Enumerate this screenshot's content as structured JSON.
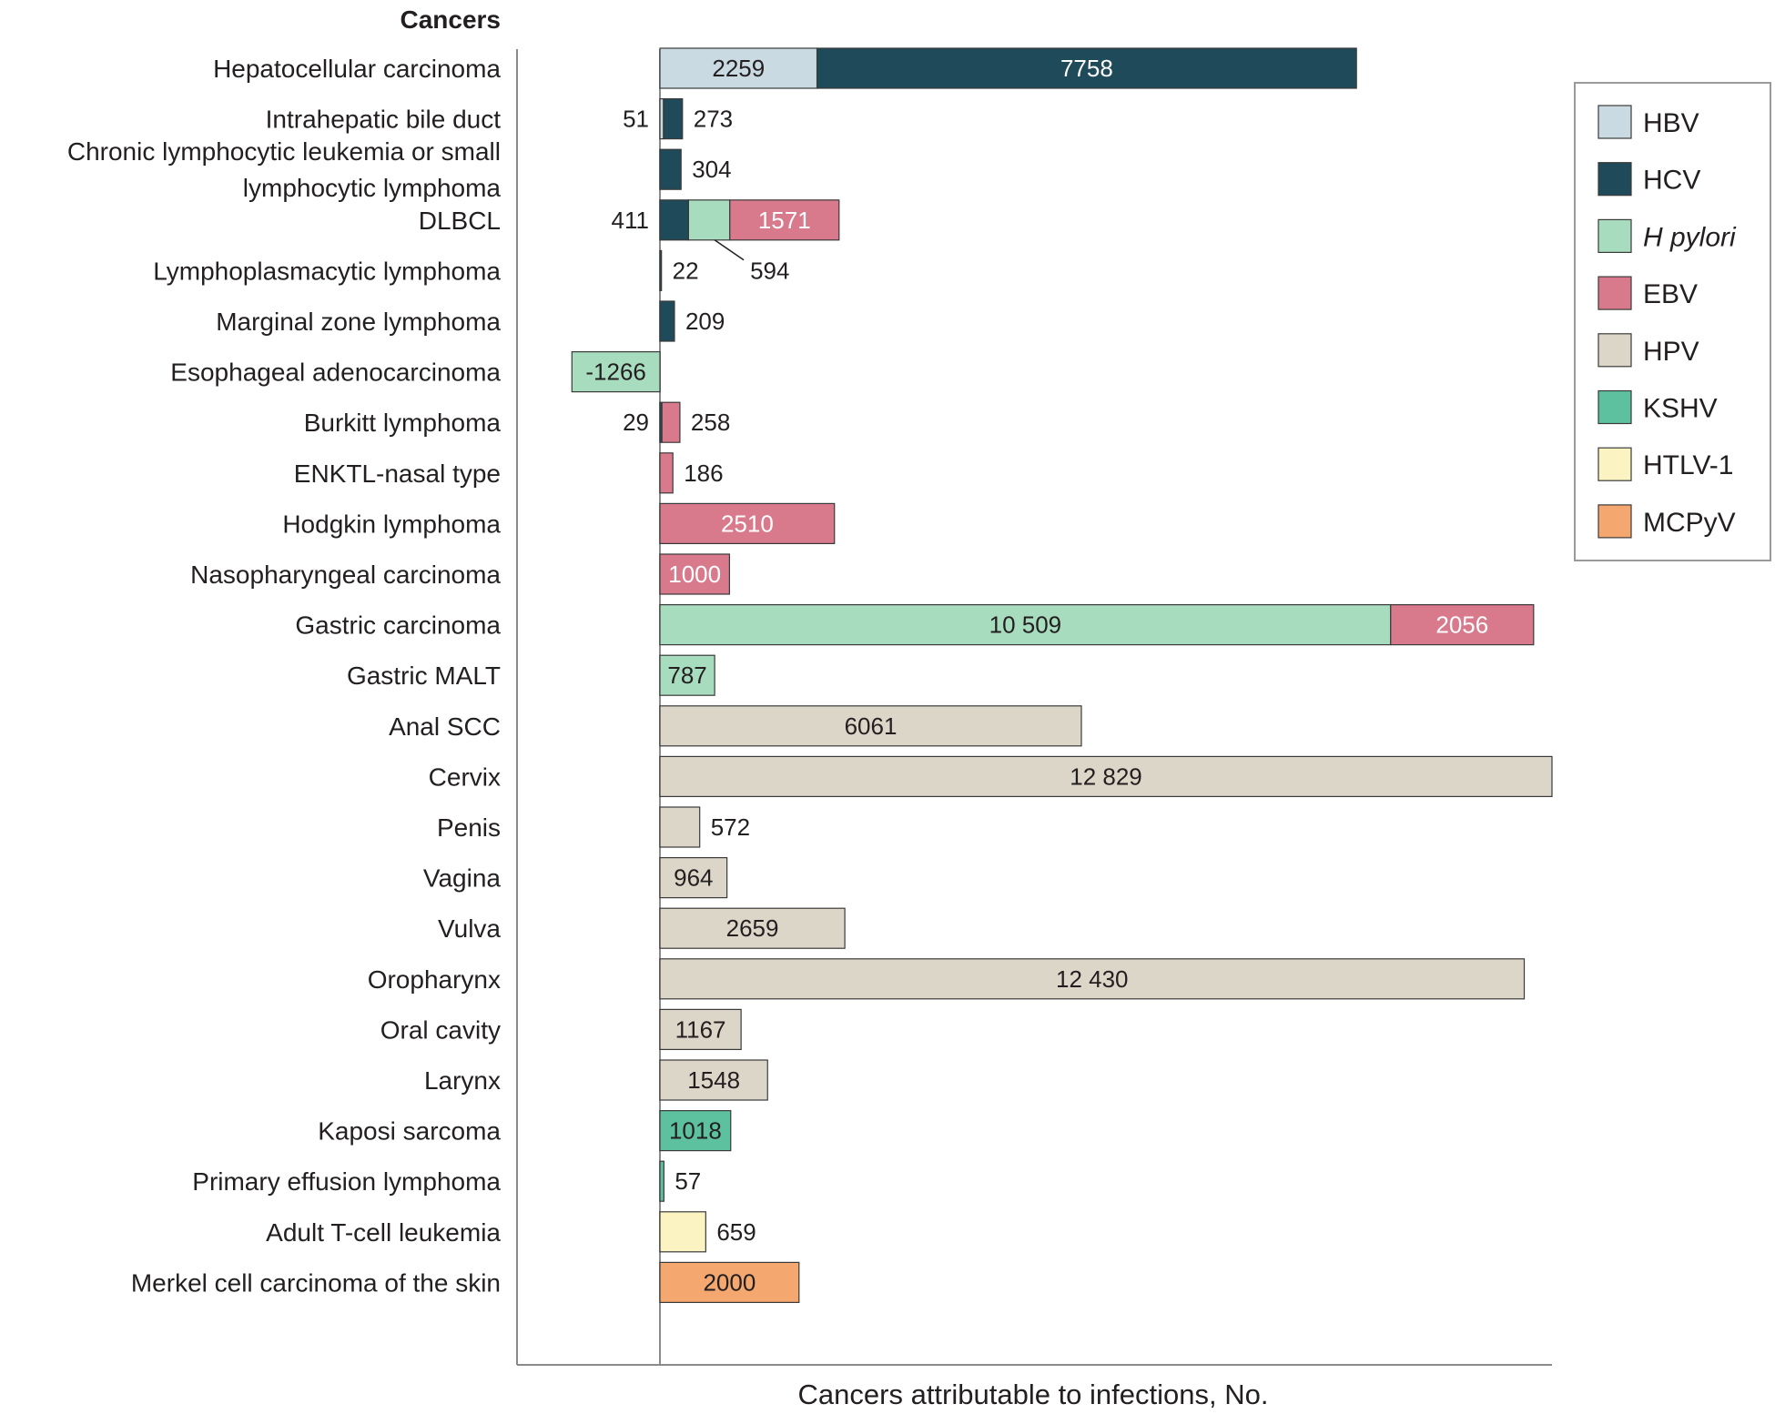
{
  "chart_data": {
    "type": "bar",
    "orientation": "horizontal",
    "stacked": true,
    "header": "Cancers",
    "xlabel": "Cancers attributable to infections, No.",
    "categories": [
      "Hepatocellular carcinoma",
      "Intrahepatic bile duct",
      "Chronic lymphocytic leukemia or small lymphocytic lymphoma",
      "DLBCL",
      "Lymphoplasmacytic lymphoma",
      "Marginal zone lymphoma",
      "Esophageal adenocarcinoma",
      "Burkitt lymphoma",
      "ENKTL-nasal type",
      "Hodgkin lymphoma",
      "Nasopharyngeal carcinoma",
      "Gastric carcinoma",
      "Gastric MALT",
      "Anal SCC",
      "Cervix",
      "Penis",
      "Vagina",
      "Vulva",
      "Oropharynx",
      "Oral cavity",
      "Larynx",
      "Kaposi sarcoma",
      "Primary effusion lymphoma",
      "Adult T-cell leukemia",
      "Merkel cell carcinoma of the skin"
    ],
    "category_lines": [
      [
        "Hepatocellular carcinoma"
      ],
      [
        "Intrahepatic bile duct"
      ],
      [
        "Chronic lymphocytic leukemia or small",
        "lymphocytic lymphoma"
      ],
      [
        "DLBCL"
      ],
      [
        "Lymphoplasmacytic lymphoma"
      ],
      [
        "Marginal zone lymphoma"
      ],
      [
        "Esophageal adenocarcinoma"
      ],
      [
        "Burkitt lymphoma"
      ],
      [
        "ENKTL-nasal type"
      ],
      [
        "Hodgkin lymphoma"
      ],
      [
        "Nasopharyngeal carcinoma"
      ],
      [
        "Gastric carcinoma"
      ],
      [
        "Gastric MALT"
      ],
      [
        "Anal SCC"
      ],
      [
        "Cervix"
      ],
      [
        "Penis"
      ],
      [
        "Vagina"
      ],
      [
        "Vulva"
      ],
      [
        "Oropharynx"
      ],
      [
        "Oral cavity"
      ],
      [
        "Larynx"
      ],
      [
        "Kaposi sarcoma"
      ],
      [
        "Primary effusion lymphoma"
      ],
      [
        "Adult T-cell leukemia"
      ],
      [
        "Merkel cell carcinoma of the skin"
      ]
    ],
    "series": [
      {
        "name": "HBV",
        "color": "#c9dae3"
      },
      {
        "name": "HCV",
        "color": "#1e4a5a"
      },
      {
        "name": "H pylori",
        "color": "#a8dcbf",
        "italic": true
      },
      {
        "name": "EBV",
        "color": "#d97a8c"
      },
      {
        "name": "HPV",
        "color": "#dcd6c9"
      },
      {
        "name": "KSHV",
        "color": "#5dc1a0"
      },
      {
        "name": "HTLV-1",
        "color": "#fbf4c2"
      },
      {
        "name": "MCPyV",
        "color": "#f4a870"
      }
    ],
    "bars": [
      {
        "segments": [
          {
            "series": "HBV",
            "value": 2259,
            "label": "2259",
            "label_pos": "inside",
            "label_color": "#231f20"
          },
          {
            "series": "HCV",
            "value": 7758,
            "label": "7758",
            "label_pos": "inside",
            "label_color": "#ffffff"
          }
        ]
      },
      {
        "segments": [
          {
            "series": "HBV",
            "value": 51,
            "label": "51",
            "label_pos": "left"
          },
          {
            "series": "HCV",
            "value": 273,
            "label": "273",
            "label_pos": "right"
          }
        ]
      },
      {
        "segments": [
          {
            "series": "HCV",
            "value": 304,
            "label": "304",
            "label_pos": "right"
          }
        ]
      },
      {
        "segments": [
          {
            "series": "HCV",
            "value": 411,
            "label": "411",
            "label_pos": "left"
          },
          {
            "series": "H pylori",
            "value": 594,
            "label": "594",
            "label_pos": "below-callout"
          },
          {
            "series": "EBV",
            "value": 1571,
            "label": "1571",
            "label_pos": "inside",
            "label_color": "#ffffff"
          }
        ]
      },
      {
        "segments": [
          {
            "series": "HCV",
            "value": 22,
            "label": "22",
            "label_pos": "right"
          }
        ]
      },
      {
        "segments": [
          {
            "series": "HCV",
            "value": 209,
            "label": "209",
            "label_pos": "right"
          }
        ]
      },
      {
        "segments": [
          {
            "series": "H pylori",
            "value": -1266,
            "label": "-1266",
            "label_pos": "inside",
            "label_color": "#231f20"
          }
        ]
      },
      {
        "segments": [
          {
            "series": "HCV",
            "value": 29,
            "label": "29",
            "label_pos": "left"
          },
          {
            "series": "EBV",
            "value": 258,
            "label": "258",
            "label_pos": "right"
          }
        ]
      },
      {
        "segments": [
          {
            "series": "EBV",
            "value": 186,
            "label": "186",
            "label_pos": "right"
          }
        ]
      },
      {
        "segments": [
          {
            "series": "EBV",
            "value": 2510,
            "label": "2510",
            "label_pos": "inside",
            "label_color": "#ffffff"
          }
        ]
      },
      {
        "segments": [
          {
            "series": "EBV",
            "value": 1000,
            "label": "1000",
            "label_pos": "inside",
            "label_color": "#ffffff"
          }
        ]
      },
      {
        "segments": [
          {
            "series": "H pylori",
            "value": 10509,
            "label": "10 509",
            "label_pos": "inside",
            "label_color": "#231f20"
          },
          {
            "series": "EBV",
            "value": 2056,
            "label": "2056",
            "label_pos": "inside",
            "label_color": "#ffffff"
          }
        ]
      },
      {
        "segments": [
          {
            "series": "H pylori",
            "value": 787,
            "label": "787",
            "label_pos": "inside",
            "label_color": "#231f20"
          }
        ]
      },
      {
        "segments": [
          {
            "series": "HPV",
            "value": 6061,
            "label": "6061",
            "label_pos": "inside",
            "label_color": "#231f20"
          }
        ]
      },
      {
        "segments": [
          {
            "series": "HPV",
            "value": 12829,
            "label": "12 829",
            "label_pos": "inside",
            "label_color": "#231f20"
          }
        ]
      },
      {
        "segments": [
          {
            "series": "HPV",
            "value": 572,
            "label": "572",
            "label_pos": "right"
          }
        ]
      },
      {
        "segments": [
          {
            "series": "HPV",
            "value": 964,
            "label": "964",
            "label_pos": "inside",
            "label_color": "#231f20"
          }
        ]
      },
      {
        "segments": [
          {
            "series": "HPV",
            "value": 2659,
            "label": "2659",
            "label_pos": "inside",
            "label_color": "#231f20"
          }
        ]
      },
      {
        "segments": [
          {
            "series": "HPV",
            "value": 12430,
            "label": "12 430",
            "label_pos": "inside",
            "label_color": "#231f20"
          }
        ]
      },
      {
        "segments": [
          {
            "series": "HPV",
            "value": 1167,
            "label": "1167",
            "label_pos": "inside",
            "label_color": "#231f20"
          }
        ]
      },
      {
        "segments": [
          {
            "series": "HPV",
            "value": 1548,
            "label": "1548",
            "label_pos": "inside",
            "label_color": "#231f20"
          }
        ]
      },
      {
        "segments": [
          {
            "series": "KSHV",
            "value": 1018,
            "label": "1018",
            "label_pos": "inside",
            "label_color": "#231f20"
          }
        ]
      },
      {
        "segments": [
          {
            "series": "KSHV",
            "value": 57,
            "label": "57",
            "label_pos": "right"
          }
        ]
      },
      {
        "segments": [
          {
            "series": "HTLV-1",
            "value": 659,
            "label": "659",
            "label_pos": "right"
          }
        ]
      },
      {
        "segments": [
          {
            "series": "MCPyV",
            "value": 2000,
            "label": "2000",
            "label_pos": "inside",
            "label_color": "#231f20"
          }
        ]
      }
    ],
    "xlim": [
      -2050,
      12850
    ],
    "grid": false,
    "legend_position": "top-right"
  }
}
